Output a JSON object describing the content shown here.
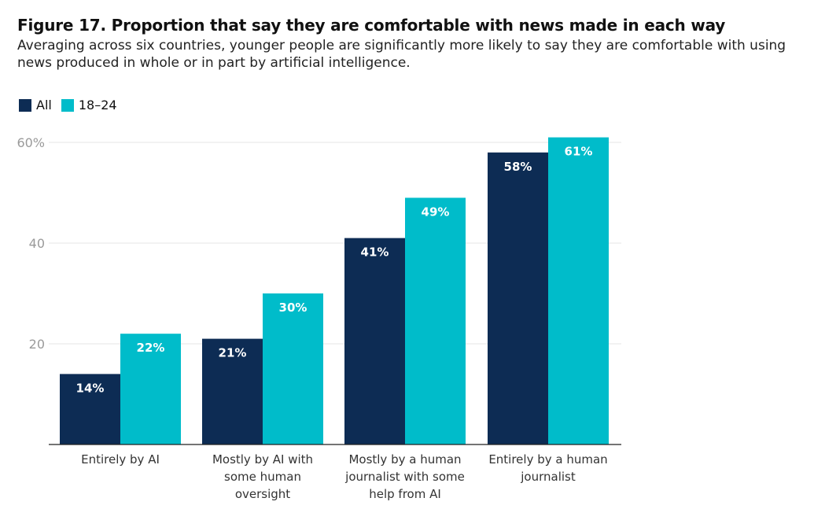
{
  "header": {
    "title": "Figure 17. Proportion that say they are comfortable with news made in each way",
    "subtitle": "Averaging across six countries, younger people are significantly more likely to say they are comfortable with using news produced in whole or in part by artificial intelligence."
  },
  "colors": {
    "all": "#0d2c54",
    "age_18_24": "#00bcca",
    "grid": "#e6e6e6",
    "tick_text": "#9a9a9a",
    "axis": "#222222"
  },
  "chart_data": {
    "type": "bar",
    "categories": [
      "Entirely by AI",
      "Mostly by AI with some human oversight",
      "Mostly by a human journalist with some help from AI",
      "Entirely by a human journalist"
    ],
    "category_lines": [
      [
        "Entirely by AI"
      ],
      [
        "Mostly by AI with",
        "some human",
        "oversight"
      ],
      [
        "Mostly by a human",
        "journalist with some",
        "help from AI"
      ],
      [
        "Entirely by a human",
        "journalist"
      ]
    ],
    "series": [
      {
        "name": "All",
        "values": [
          14,
          21,
          41,
          58
        ],
        "labels": [
          "14%",
          "21%",
          "41%",
          "58%"
        ]
      },
      {
        "name": "18–24",
        "values": [
          22,
          30,
          49,
          61
        ],
        "labels": [
          "22%",
          "30%",
          "49%",
          "61%"
        ]
      }
    ],
    "yticks": [
      {
        "value": 20,
        "label": "20"
      },
      {
        "value": 40,
        "label": "40"
      },
      {
        "value": 60,
        "label": "60%"
      }
    ],
    "ylim": [
      0,
      60
    ],
    "grid": true,
    "legend": "top-left"
  }
}
